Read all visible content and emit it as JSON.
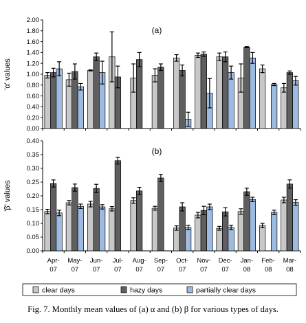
{
  "chart_data": [
    {
      "type": "bar",
      "panel_label": "(a)",
      "ylabel": "'α' values",
      "ylim": [
        0,
        2
      ],
      "yticks": [
        "0.00",
        "0.20",
        "0.40",
        "0.60",
        "0.80",
        "1.00",
        "1.20",
        "1.40",
        "1.60",
        "1.80",
        "2.00"
      ],
      "categories": [
        "Apr-07",
        "May-07",
        "Jun-07",
        "Jul-07",
        "Aug-07",
        "Sep-07",
        "Oct-07",
        "Nov-07",
        "Dec-07",
        "Jan-08",
        "Feb-08",
        "Mar-08"
      ],
      "series": [
        {
          "name": "clear days",
          "color": "#c8c8c8",
          "values": [
            0.98,
            0.9,
            1.07,
            1.32,
            0.93,
            0.98,
            1.3,
            1.35,
            1.32,
            0.93,
            1.1,
            0.75
          ],
          "errors": [
            0.05,
            0.12,
            0.01,
            0.46,
            0.26,
            0.12,
            0.06,
            0.04,
            0.07,
            0.26,
            0.07,
            0.08
          ]
        },
        {
          "name": "hazy days",
          "color": "#5f5f5f",
          "values": [
            1.03,
            1.05,
            1.32,
            0.95,
            1.27,
            1.13,
            1.07,
            1.37,
            1.32,
            1.5,
            null,
            1.03
          ],
          "errors": [
            0.08,
            0.14,
            0.07,
            0.2,
            0.13,
            0.06,
            0.1,
            0.04,
            0.09,
            0.01,
            null,
            0.03
          ]
        },
        {
          "name": "partially clear days",
          "color": "#9dbbe0",
          "values": [
            1.1,
            0.77,
            1.03,
            null,
            null,
            null,
            0.17,
            0.65,
            1.03,
            1.3,
            0.81,
            0.88
          ],
          "errors": [
            0.13,
            0.06,
            0.21,
            null,
            null,
            null,
            0.13,
            0.27,
            0.12,
            0.1,
            0.02,
            0.08
          ]
        }
      ]
    },
    {
      "type": "bar",
      "panel_label": "(b)",
      "ylabel": "'β' values",
      "ylim": [
        0,
        0.4
      ],
      "yticks": [
        "0.00",
        "0.05",
        "0.10",
        "0.15",
        "0.20",
        "0.25",
        "0.30",
        "0.35",
        "0.40"
      ],
      "categories": [
        "Apr-07",
        "May-07",
        "Jun-07",
        "Jul-07",
        "Aug-07",
        "Sep-07",
        "Oct-07",
        "Nov-07",
        "Dec-07",
        "Jan-08",
        "Feb-08",
        "Mar-08"
      ],
      "series": [
        {
          "name": "clear days",
          "color": "#c8c8c8",
          "values": [
            0.143,
            0.175,
            0.17,
            0.153,
            0.183,
            0.155,
            0.083,
            0.13,
            0.082,
            0.143,
            0.092,
            0.185
          ],
          "errors": [
            0.008,
            0.008,
            0.01,
            0.008,
            0.01,
            0.007,
            0.008,
            0.01,
            0.007,
            0.01,
            0.008,
            0.01
          ]
        },
        {
          "name": "hazy days",
          "color": "#5f5f5f",
          "values": [
            0.245,
            0.23,
            0.227,
            0.328,
            0.218,
            0.265,
            0.16,
            0.147,
            0.142,
            0.215,
            null,
            0.243
          ],
          "errors": [
            0.013,
            0.013,
            0.015,
            0.012,
            0.013,
            0.013,
            0.015,
            0.015,
            0.015,
            0.013,
            null,
            0.015
          ]
        },
        {
          "name": "partially clear days",
          "color": "#9dbbe0",
          "values": [
            0.138,
            0.162,
            0.16,
            null,
            null,
            null,
            0.085,
            0.16,
            0.085,
            0.187,
            0.14,
            0.176
          ],
          "errors": [
            0.01,
            0.008,
            0.008,
            null,
            null,
            null,
            0.008,
            0.01,
            0.008,
            0.008,
            0.008,
            0.01
          ]
        }
      ]
    }
  ],
  "xtick_labels": [
    {
      "line1": "Apr-",
      "line2": "07"
    },
    {
      "line1": "May-",
      "line2": "07"
    },
    {
      "line1": "Jun-",
      "line2": "07"
    },
    {
      "line1": "Jul-",
      "line2": "07"
    },
    {
      "line1": "Aug-",
      "line2": "07"
    },
    {
      "line1": "Sep-",
      "line2": "07"
    },
    {
      "line1": "Oct-",
      "line2": "07"
    },
    {
      "line1": "Nov-",
      "line2": "07"
    },
    {
      "line1": "Dec-",
      "line2": "07"
    },
    {
      "line1": "Jan-",
      "line2": "08"
    },
    {
      "line1": "Feb-",
      "line2": "08"
    },
    {
      "line1": "Mar-",
      "line2": "08"
    }
  ],
  "legend": {
    "placement": "bottom",
    "entries": [
      "clear days",
      "hazy days",
      "partially clear days"
    ]
  },
  "caption": "Fig. 7. Monthly mean values of (a) α and (b) β for various types of days."
}
